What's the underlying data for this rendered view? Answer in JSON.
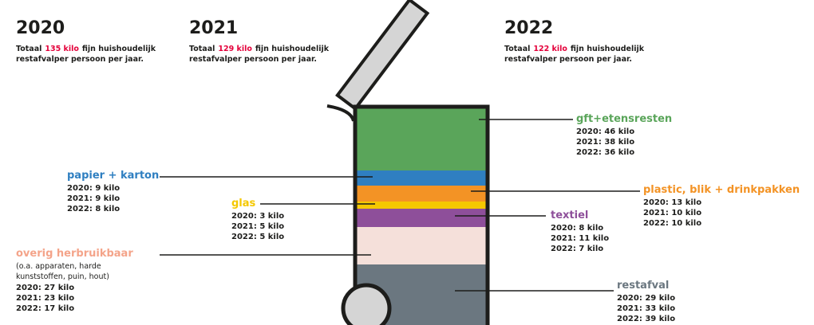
{
  "years": [
    {
      "year": "2020",
      "prefix": "Totaal",
      "amount": "135 kilo",
      "line1": "fijn huishoudelijk",
      "line2": "restafvalper persoon  per jaar."
    },
    {
      "year": "2021",
      "prefix": "Totaal",
      "amount": "129 kilo",
      "line1": "fijn huishoudelijk",
      "line2": "restafvalper persoon  per jaar."
    },
    {
      "year": "2022",
      "prefix": "Totaal",
      "amount": "122 kilo",
      "line1": "fijn huishoudelijk",
      "line2": "restafvalper persoon  per jaar."
    }
  ],
  "categories": [
    {
      "label": "gft+etensresten",
      "lines": [
        "2020: 46 kilo",
        "2021: 38 kilo",
        "2022: 36 kilo"
      ]
    },
    {
      "label": "papier + karton",
      "lines": [
        "2020: 9 kilo",
        "2021: 9 kilo",
        "2022: 8 kilo"
      ]
    },
    {
      "label": "plastic, blik + drinkpakken",
      "lines": [
        "2020: 13 kilo",
        "2021: 10 kilo",
        "2022: 10 kilo"
      ]
    },
    {
      "label": "glas",
      "lines": [
        "2020: 3 kilo",
        "2021: 5 kilo",
        "2022: 5 kilo"
      ]
    },
    {
      "label": "textiel",
      "lines": [
        "2020: 8 kilo",
        "2021: 11 kilo",
        "2022: 7 kilo"
      ]
    },
    {
      "label": "overig herbruikbaar",
      "note": [
        "(o.a. apparaten, harde",
        "kunststoffen, puin, hout)"
      ],
      "lines": [
        "2020: 27 kilo",
        "2021: 23 kilo",
        "2022: 17 kilo"
      ]
    },
    {
      "label": "restafval",
      "lines": [
        "2020: 29 kilo",
        "2021: 33 kilo",
        "2022: 39 kilo"
      ]
    }
  ]
}
